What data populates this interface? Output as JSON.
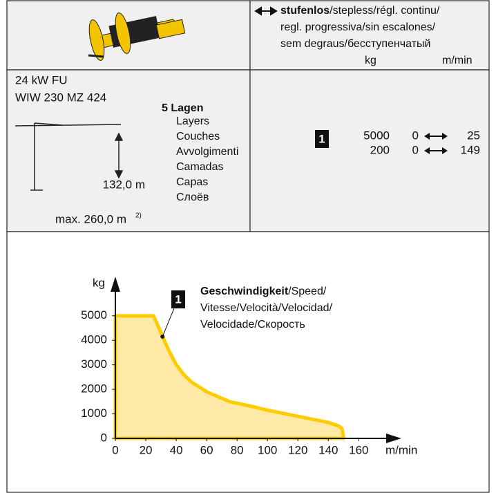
{
  "header": {
    "speed_mode_bold": "stufenlos",
    "speed_mode_lines": [
      "/stepless/régl. continu/",
      "regl. progressiva/sin escalones/",
      "sem degraus/бесступенчатый"
    ],
    "unit_load": "kg",
    "unit_speed": "m/min"
  },
  "drive": {
    "power": "24 kW FU",
    "model": "WIW 230 MZ 424",
    "hook_height": "132,0 m",
    "max_height": "max. 260,0 m",
    "max_height_note": "2)"
  },
  "layers": {
    "count": "5 Lagen",
    "translations": [
      "Layers",
      "Couches",
      "Avvolgimenti",
      "Camadas",
      "Capas",
      "Слоёв"
    ]
  },
  "performance": {
    "marker": "1",
    "rows": [
      {
        "load": 5000,
        "speed_min": 0,
        "speed_max": 25
      },
      {
        "load": 200,
        "speed_min": 0,
        "speed_max": 149
      }
    ]
  },
  "chart_data": {
    "type": "area",
    "x_label": "m/min",
    "y_label": "kg",
    "x": [
      0,
      25,
      28,
      31,
      35,
      40,
      45,
      50,
      60,
      75,
      90,
      100,
      120,
      140,
      147,
      149,
      150
    ],
    "values": [
      5000,
      5000,
      4600,
      4150,
      3600,
      3000,
      2600,
      2300,
      1900,
      1500,
      1300,
      1150,
      900,
      650,
      500,
      400,
      0
    ],
    "xlim": [
      0,
      188
    ],
    "ylim": [
      0,
      6600
    ],
    "xticks": [
      0,
      20,
      40,
      60,
      80,
      100,
      120,
      140,
      160
    ],
    "yticks": [
      0,
      1000,
      2000,
      3000,
      4000,
      5000
    ],
    "fill_color": "#ffe9a6",
    "line_color": "#ffcc00",
    "grid": false,
    "annotation": {
      "marker": "1",
      "bold": "Geschwindigkeit",
      "lines": [
        "/Speed/",
        "Vitesse/Velocità/Velocidad/",
        "Velocidade/Скорость"
      ],
      "x": 31,
      "y": 4150
    }
  }
}
